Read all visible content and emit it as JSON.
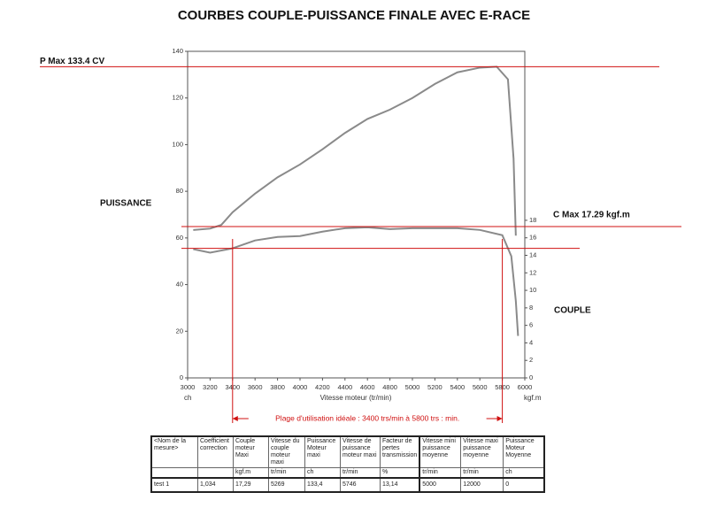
{
  "chart_data": {
    "type": "line",
    "title": "COURBES COUPLE-PUISSANCE FINALE AVEC E-RACE",
    "x_label": "Vitesse moteur (tr/min)",
    "y_unit": "ch",
    "y2_unit": "kgf.m",
    "y_name": "PUISSANCE",
    "y2_name": "COUPLE",
    "xlim": [
      3000,
      6000
    ],
    "xticks": [
      3000,
      3200,
      3400,
      3600,
      3800,
      4000,
      4200,
      4400,
      4600,
      4800,
      5000,
      5200,
      5400,
      5600,
      5800,
      6000
    ],
    "ylim": [
      0,
      140
    ],
    "yticks": [
      0,
      20,
      40,
      60,
      80,
      100,
      120,
      140
    ],
    "y2lim": [
      0,
      37.3
    ],
    "y2ticks": [
      0,
      2,
      4,
      6,
      8,
      10,
      12,
      14,
      16,
      18
    ],
    "grid": false,
    "series": [
      {
        "name": "Puissance",
        "color": "#8a8a8a",
        "axis": "y",
        "x": [
          3050,
          3200,
          3300,
          3400,
          3600,
          3800,
          4000,
          4200,
          4400,
          4600,
          4800,
          5000,
          5200,
          5400,
          5600,
          5750,
          5850,
          5900,
          5920
        ],
        "values": [
          63.4,
          64,
          65.6,
          71,
          79,
          86,
          91.5,
          98,
          105,
          111,
          115,
          120,
          126,
          131,
          133,
          133.4,
          128,
          94,
          61
        ]
      },
      {
        "name": "Couple",
        "color": "#8a8a8a",
        "axis": "y2",
        "x": [
          3050,
          3200,
          3400,
          3600,
          3800,
          4000,
          4200,
          4400,
          4600,
          4800,
          5000,
          5200,
          5400,
          5600,
          5800,
          5880,
          5920,
          5940
        ],
        "values": [
          14.7,
          14.3,
          14.8,
          15.7,
          16.1,
          16.2,
          16.7,
          17.1,
          17.2,
          17.0,
          17.1,
          17.1,
          17.1,
          16.9,
          16.3,
          13.9,
          8.8,
          4.8
        ]
      }
    ],
    "reference_lines": [
      {
        "label": "P Max 133.4  CV",
        "value": 133.4,
        "axis": "y"
      },
      {
        "label": "C Max 17.29  kgf.m",
        "value": 17.29,
        "axis": "y2"
      },
      {
        "value": 14.8,
        "axis": "y2"
      }
    ],
    "range": {
      "label": "Plage d'utilisation  idéale : 3400 trs/min à 5800 trs : min.",
      "x": [
        3400,
        5800
      ]
    }
  },
  "table": {
    "header": [
      "<Nom de la mesure>",
      "Coefficient correction",
      "Couple moteur Maxi",
      "Vitesse du couple moteur maxi",
      "Puissance Moteur maxi",
      "Vitesse de puissance moteur maxi",
      "Facteur de pertes transmission",
      "Vitesse mini puissance moyenne",
      "Vitesse maxi puissance moyenne",
      "Puissance Moteur Moyenne"
    ],
    "units": [
      null,
      null,
      "kgf.m",
      "tr/min",
      "ch",
      "tr/min",
      "%",
      "tr/min",
      "tr/min",
      "ch"
    ],
    "rows": [
      [
        "test 1",
        "1,034",
        "17,29",
        "5269",
        "133,4",
        "5746",
        "13,14",
        "5000",
        "12000",
        "0"
      ]
    ]
  }
}
